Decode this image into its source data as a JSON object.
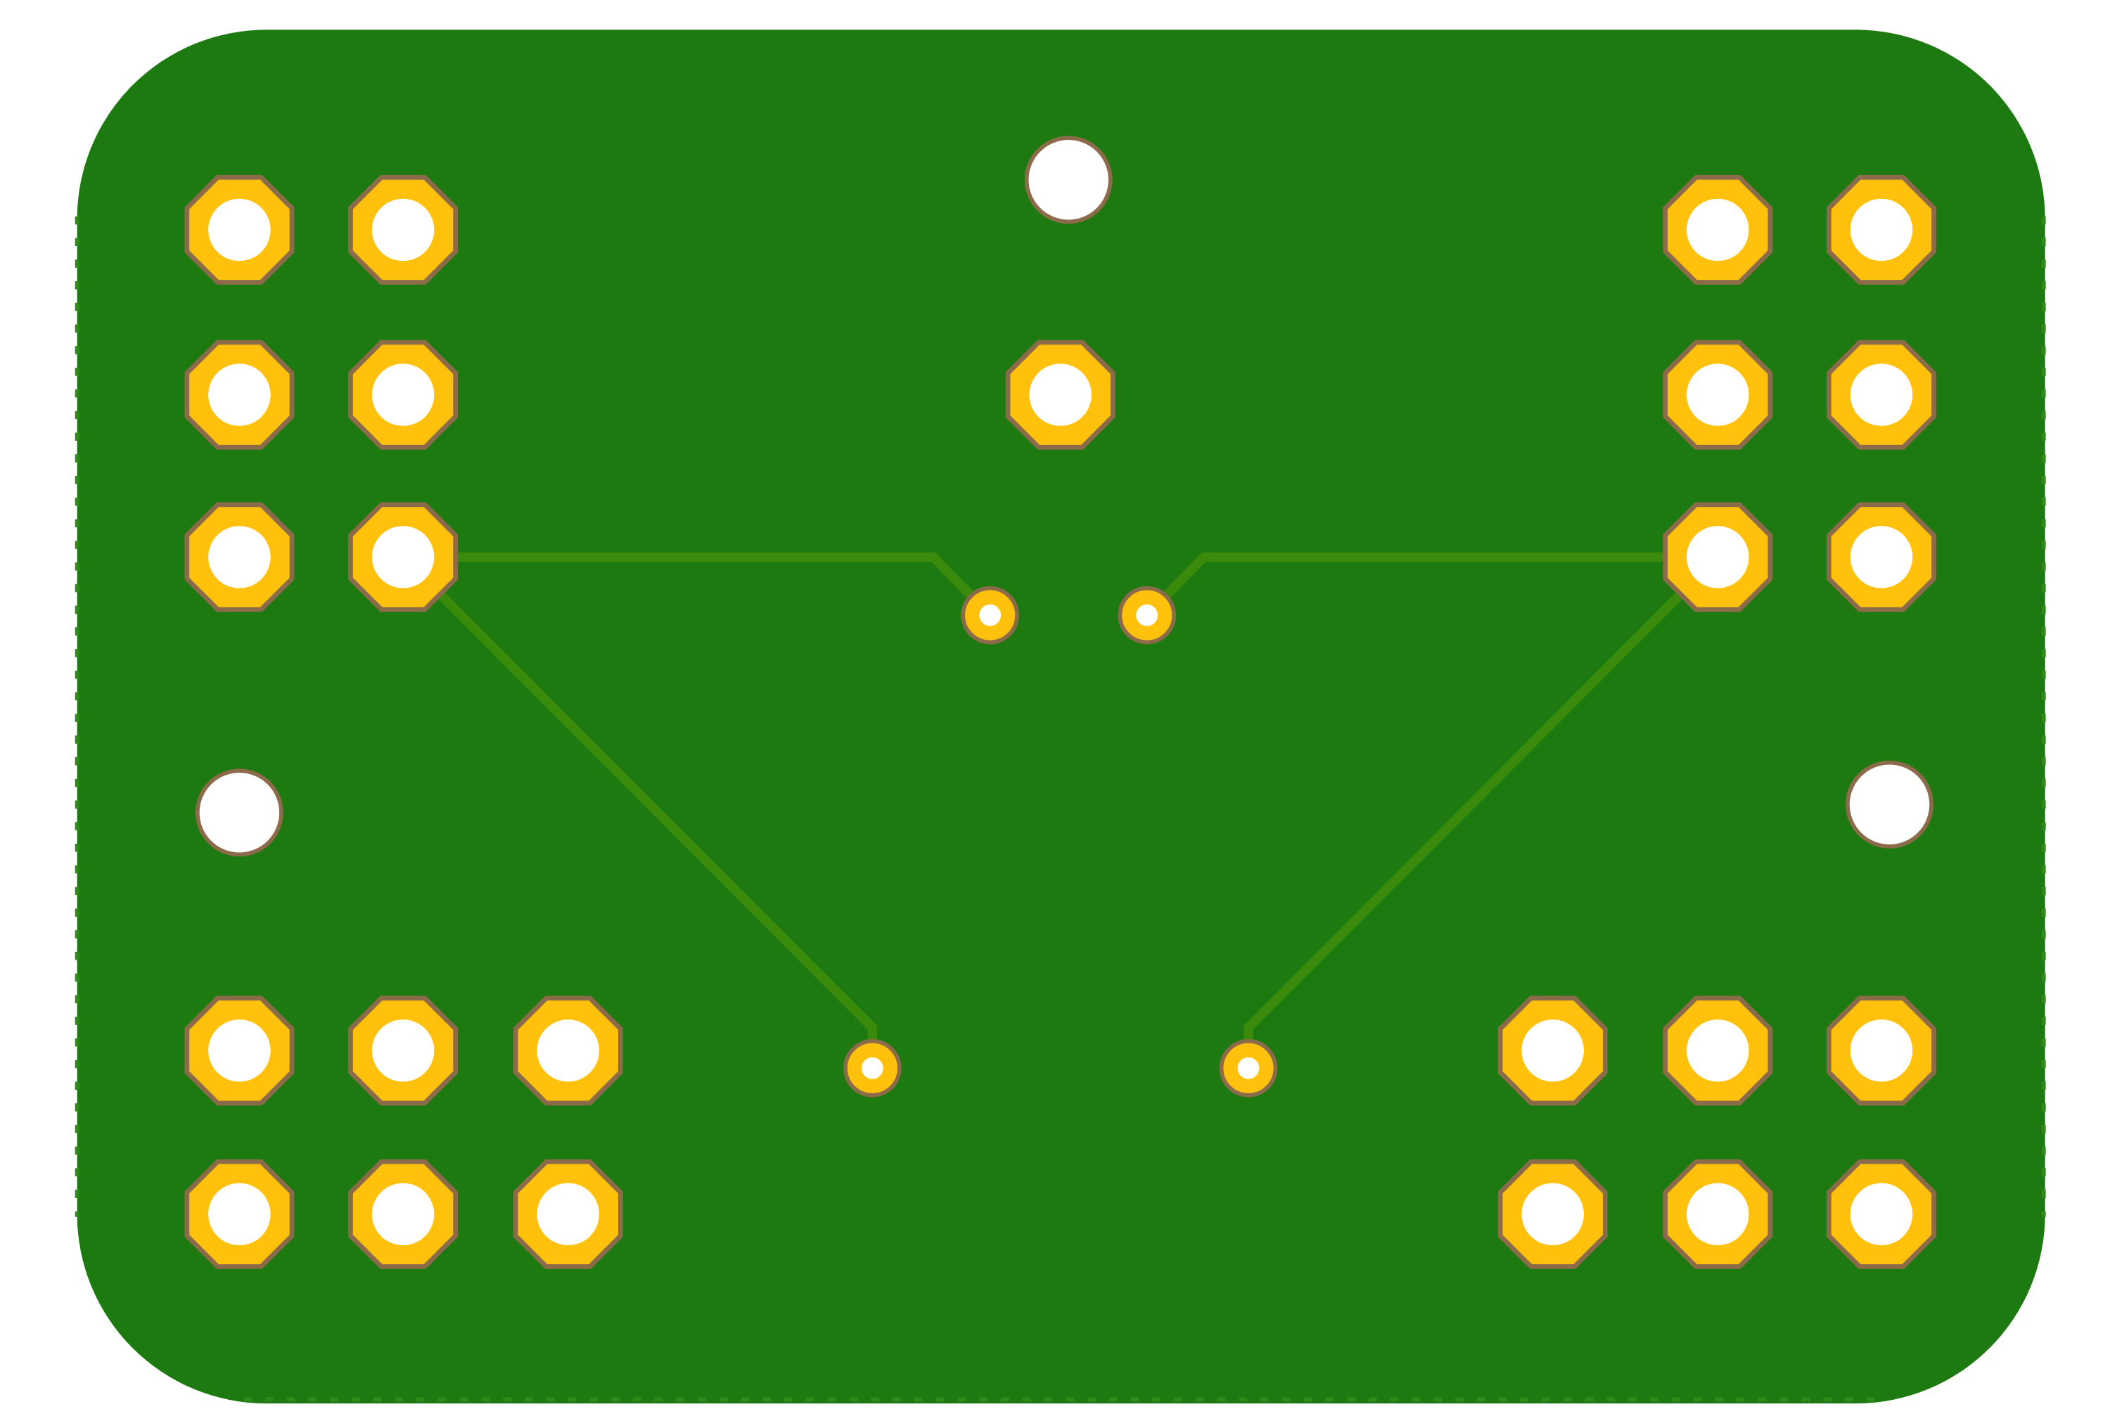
{
  "board": {
    "name": "pcb-board",
    "colors": {
      "background": "#ffffff",
      "substrate": "#1c7a10",
      "trace": "#3a8a0c",
      "pad_fill": "#ffc10b",
      "pad_outline": "#8b6b4a",
      "drill": "#ffffff",
      "edge_dash": "#2f8a1a"
    }
  },
  "components": {
    "header_groups": [
      "top-left-header",
      "top-right-header",
      "bottom-left-header",
      "bottom-right-header"
    ],
    "single_pad": "center-pad",
    "vias": 4,
    "mounting_holes": 3,
    "traces": 4
  }
}
